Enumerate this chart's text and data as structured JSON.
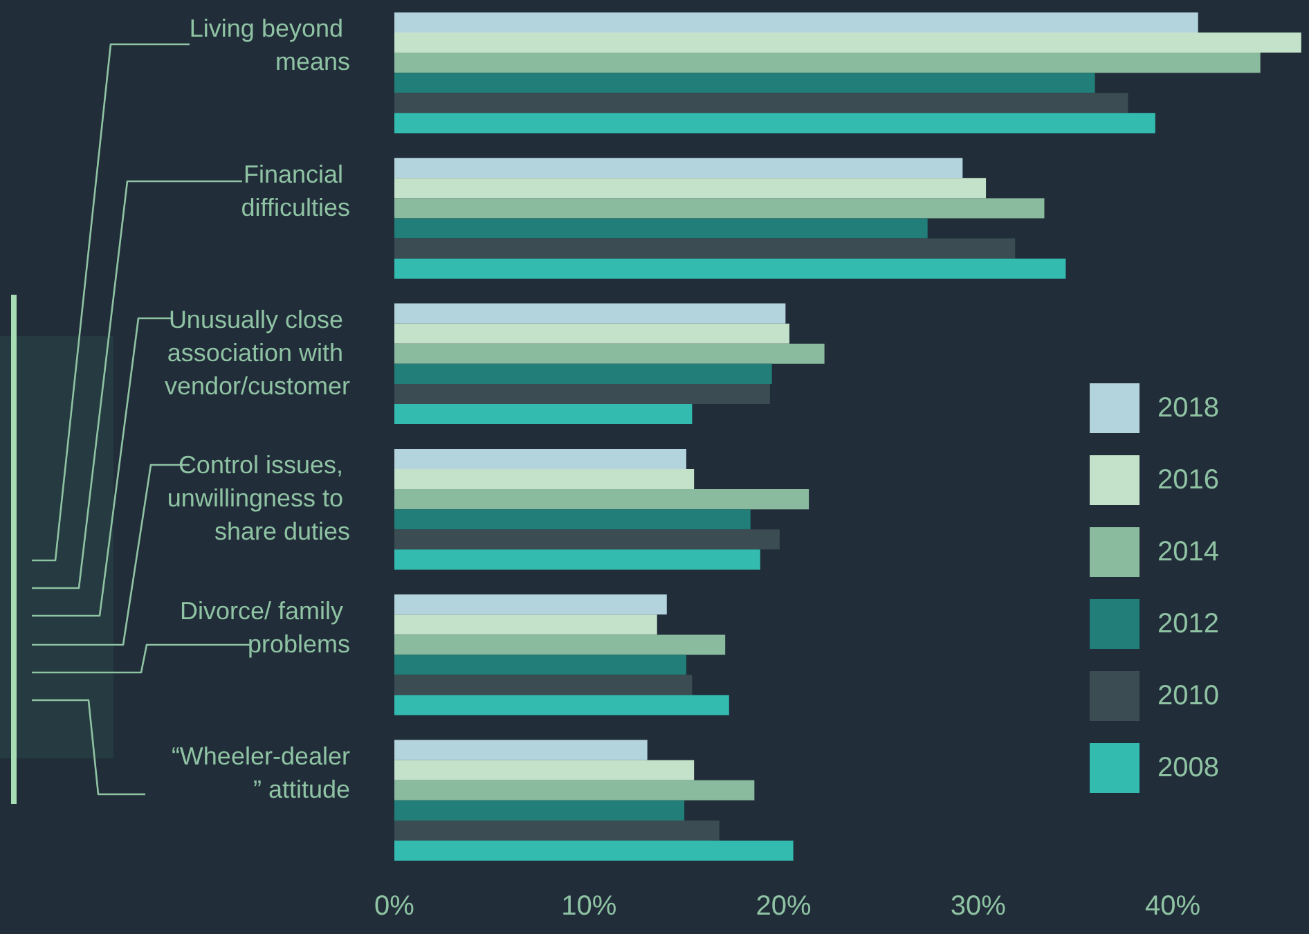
{
  "chart_data": {
    "type": "bar",
    "orientation": "horizontal",
    "categories": [
      "Living beyond means",
      "Financial difficulties",
      "Unusually close association with vendor/customer",
      "Control issues, unwillingness to share duties",
      "Divorce/ family problems",
      "“Wheeler-dealer” attitude"
    ],
    "series": [
      {
        "name": "2018",
        "color": "#b3d4dd",
        "values": [
          41.3,
          29.2,
          20.1,
          15.0,
          14.0,
          13.0
        ]
      },
      {
        "name": "2016",
        "color": "#c4e2ca",
        "values": [
          46.6,
          30.4,
          20.3,
          15.4,
          13.5,
          15.4
        ]
      },
      {
        "name": "2014",
        "color": "#8bbb9e",
        "values": [
          44.5,
          33.4,
          22.1,
          21.3,
          17.0,
          18.5
        ]
      },
      {
        "name": "2012",
        "color": "#227e78",
        "values": [
          36.0,
          27.4,
          19.4,
          18.3,
          15.0,
          14.9
        ]
      },
      {
        "name": "2010",
        "color": "#3b4c52",
        "values": [
          37.7,
          31.9,
          19.3,
          19.8,
          15.3,
          16.7
        ]
      },
      {
        "name": "2008",
        "color": "#33bbb0",
        "values": [
          39.1,
          34.5,
          15.3,
          18.8,
          17.2,
          20.5
        ]
      }
    ],
    "xlim": [
      0,
      47
    ],
    "xticks": [
      {
        "value": 0,
        "label": "0%"
      },
      {
        "value": 10,
        "label": "10%"
      },
      {
        "value": 20,
        "label": "20%"
      },
      {
        "value": 30,
        "label": "30%"
      },
      {
        "value": 40,
        "label": "40%"
      }
    ],
    "grid": false,
    "legend": "right"
  }
}
